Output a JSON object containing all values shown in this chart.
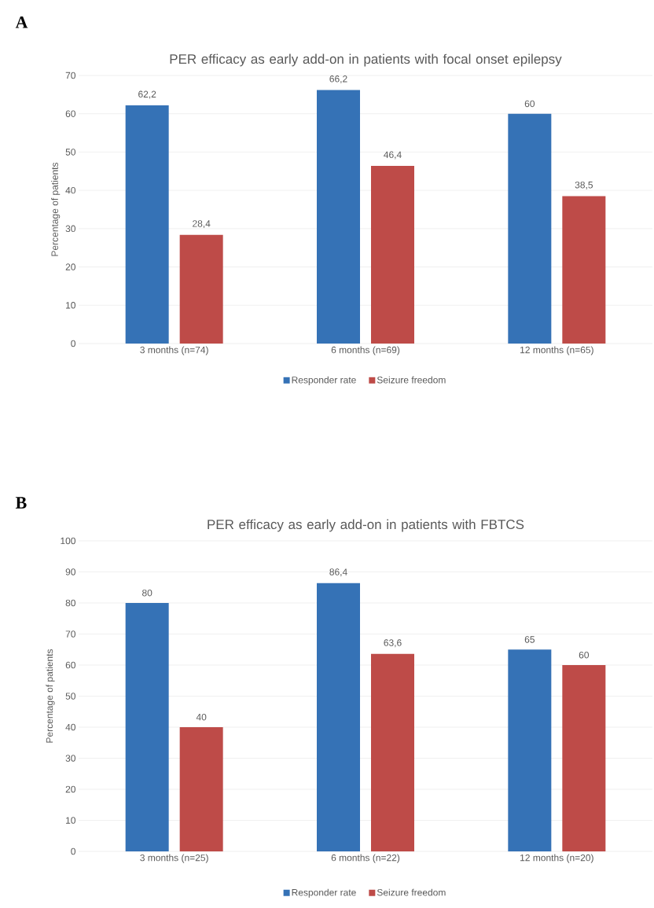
{
  "chart_data": [
    {
      "type": "bar",
      "title": "PER efficacy as early add-on in patients with focal onset epilepsy",
      "ylabel": "Percentage of patients",
      "annotations": [
        "A"
      ],
      "categories": [
        "3 months (n=74)",
        "6 months (n=69)",
        "12 months (n=65)"
      ],
      "series": [
        {
          "name": "Responder rate",
          "color": "#3572b6",
          "values": [
            62.2,
            66.2,
            60
          ],
          "value_labels": [
            "62,2",
            "66,2",
            "60"
          ]
        },
        {
          "name": "Seizure freedom",
          "color": "#be4b48",
          "values": [
            28.4,
            46.4,
            38.5
          ],
          "value_labels": [
            "28,4",
            "46,4",
            "38,5"
          ]
        }
      ],
      "ylim": [
        0,
        70
      ],
      "yticks": [
        0,
        10,
        20,
        30,
        40,
        50,
        60,
        70
      ],
      "grid": "y",
      "legend": "bottom"
    },
    {
      "type": "bar",
      "title": "PER efficacy as early add-on in patients with FBTCS",
      "ylabel": "Percentage of patients",
      "annotations": [
        "B"
      ],
      "categories": [
        "3 months (n=25)",
        "6 months (n=22)",
        "12 months (n=20)"
      ],
      "series": [
        {
          "name": "Responder rate",
          "color": "#3572b6",
          "values": [
            80,
            86.4,
            65
          ],
          "value_labels": [
            "80",
            "86,4",
            "65"
          ]
        },
        {
          "name": "Seizure freedom",
          "color": "#be4b48",
          "values": [
            40,
            63.6,
            60
          ],
          "value_labels": [
            "40",
            "63,6",
            "60"
          ]
        }
      ],
      "ylim": [
        0,
        100
      ],
      "yticks": [
        0,
        10,
        20,
        30,
        40,
        50,
        60,
        70,
        80,
        90,
        100
      ],
      "grid": "y",
      "legend": "bottom"
    }
  ]
}
